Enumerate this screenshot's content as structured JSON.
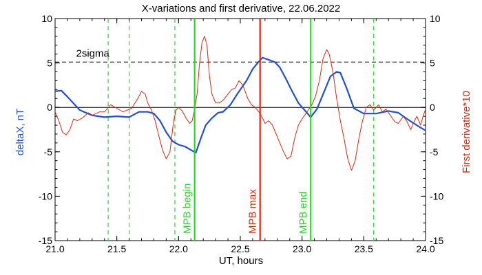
{
  "chart_data": {
    "type": "line",
    "title": "X-variations and first derivative, 22.06.2022",
    "xlabel": "UT, hours",
    "ylabel_left": "deltaX, nT",
    "ylabel_right": "First derivative*10",
    "xlim": [
      21.0,
      24.0
    ],
    "ylim_left": [
      -15,
      10
    ],
    "ylim_right": [
      -15,
      10
    ],
    "x_ticks": [
      "21.0",
      "21.5",
      "22.0",
      "22.5",
      "23.0",
      "23.5",
      "24.0"
    ],
    "x_tick_values": [
      21.0,
      21.5,
      22.0,
      22.5,
      23.0,
      23.5,
      24.0
    ],
    "y_ticks_left": [
      "-15",
      "-10",
      "-5",
      "0",
      "5",
      "10"
    ],
    "y_tick_values_left": [
      -15,
      -10,
      -5,
      0,
      5,
      10
    ],
    "y_ticks_right": [
      "-15",
      "-10",
      "-5",
      "0",
      "5",
      "10"
    ],
    "y_tick_values_right": [
      -15,
      -10,
      -5,
      0,
      5,
      10
    ],
    "colors": {
      "deltaX": "#1f4fd6",
      "derivative": "#d42a10",
      "marker_green": "#22dd22",
      "marker_red": "#e02a10",
      "axis": "#000000"
    },
    "reference_lines": [
      {
        "y": 0,
        "style": "solid"
      },
      {
        "y": 5.1,
        "style": "dashed",
        "label": "2sigma"
      }
    ],
    "dashed_green_lines_x": [
      21.43,
      21.6,
      21.97,
      23.58
    ],
    "markers": [
      {
        "x": 22.13,
        "label": "MPB begin",
        "color": "green"
      },
      {
        "x": 22.66,
        "label": "MPB max",
        "color": "red"
      },
      {
        "x": 23.07,
        "label": "MPB end",
        "color": "green"
      }
    ],
    "series": [
      {
        "name": "deltaX, nT",
        "color": "blue",
        "points": [
          [
            21.0,
            1.8
          ],
          [
            21.05,
            1.9
          ],
          [
            21.1,
            1.2
          ],
          [
            21.2,
            -0.3
          ],
          [
            21.3,
            -0.9
          ],
          [
            21.4,
            -1.1
          ],
          [
            21.5,
            -1.0
          ],
          [
            21.6,
            -1.1
          ],
          [
            21.68,
            -0.5
          ],
          [
            21.75,
            -0.5
          ],
          [
            21.8,
            -0.7
          ],
          [
            21.85,
            -1.5
          ],
          [
            21.9,
            -2.8
          ],
          [
            21.95,
            -3.8
          ],
          [
            22.0,
            -4.2
          ],
          [
            22.05,
            -4.4
          ],
          [
            22.1,
            -4.8
          ],
          [
            22.14,
            -5.1
          ],
          [
            22.18,
            -3.5
          ],
          [
            22.22,
            -2.0
          ],
          [
            22.27,
            -1.2
          ],
          [
            22.32,
            -0.6
          ],
          [
            22.36,
            -0.5
          ],
          [
            22.42,
            0.3
          ],
          [
            22.48,
            1.6
          ],
          [
            22.55,
            3.0
          ],
          [
            22.6,
            4.3
          ],
          [
            22.64,
            5.0
          ],
          [
            22.68,
            5.6
          ],
          [
            22.72,
            5.4
          ],
          [
            22.78,
            5.1
          ],
          [
            22.82,
            4.5
          ],
          [
            22.87,
            3.2
          ],
          [
            22.92,
            1.8
          ],
          [
            22.97,
            0.5
          ],
          [
            23.02,
            -0.3
          ],
          [
            23.07,
            -1.1
          ],
          [
            23.12,
            -0.2
          ],
          [
            23.18,
            1.8
          ],
          [
            23.23,
            3.5
          ],
          [
            23.28,
            4.0
          ],
          [
            23.31,
            3.9
          ],
          [
            23.36,
            2.2
          ],
          [
            23.42,
            -0.1
          ],
          [
            23.5,
            -0.7
          ],
          [
            23.6,
            -0.7
          ],
          [
            23.7,
            -0.4
          ],
          [
            23.78,
            -0.6
          ],
          [
            23.85,
            -1.3
          ],
          [
            23.95,
            -2.2
          ],
          [
            24.0,
            -2.6
          ]
        ]
      },
      {
        "name": "First derivative*10",
        "color": "red",
        "points": [
          [
            21.0,
            -0.5
          ],
          [
            21.03,
            -1.5
          ],
          [
            21.06,
            -2.8
          ],
          [
            21.09,
            -3.1
          ],
          [
            21.12,
            -2.5
          ],
          [
            21.15,
            -1.3
          ],
          [
            21.18,
            -1.5
          ],
          [
            21.22,
            -1.2
          ],
          [
            21.27,
            -0.6
          ],
          [
            21.3,
            -0.9
          ],
          [
            21.36,
            -0.5
          ],
          [
            21.4,
            -0.5
          ],
          [
            21.45,
            0.3
          ],
          [
            21.5,
            -0.1
          ],
          [
            21.55,
            -0.5
          ],
          [
            21.62,
            -0.1
          ],
          [
            21.67,
            1.0
          ],
          [
            21.7,
            1.8
          ],
          [
            21.73,
            1.5
          ],
          [
            21.75,
            0.5
          ],
          [
            21.78,
            -0.3
          ],
          [
            21.81,
            -1.5
          ],
          [
            21.84,
            -3.2
          ],
          [
            21.87,
            -4.8
          ],
          [
            21.9,
            -5.8
          ],
          [
            21.93,
            -5.0
          ],
          [
            21.96,
            -1.5
          ],
          [
            21.98,
            -0.3
          ],
          [
            22.0,
            0.0
          ],
          [
            22.03,
            -0.4
          ],
          [
            22.06,
            -1.2
          ],
          [
            22.09,
            -1.8
          ],
          [
            22.11,
            -1.5
          ],
          [
            22.13,
            -0.2
          ],
          [
            22.15,
            1.5
          ],
          [
            22.17,
            5.0
          ],
          [
            22.19,
            7.3
          ],
          [
            22.21,
            8.0
          ],
          [
            22.23,
            7.0
          ],
          [
            22.25,
            3.5
          ],
          [
            22.27,
            1.5
          ],
          [
            22.3,
            0.5
          ],
          [
            22.33,
            0.5
          ],
          [
            22.36,
            0.8
          ],
          [
            22.4,
            1.5
          ],
          [
            22.43,
            2.0
          ],
          [
            22.46,
            2.2
          ],
          [
            22.49,
            3.0
          ],
          [
            22.52,
            2.5
          ],
          [
            22.56,
            1.0
          ],
          [
            22.59,
            0.3
          ],
          [
            22.62,
            0.0
          ],
          [
            22.65,
            -0.5
          ],
          [
            22.68,
            -1.2
          ],
          [
            22.7,
            -1.8
          ],
          [
            22.73,
            -1.5
          ],
          [
            22.76,
            -2.0
          ],
          [
            22.79,
            -3.0
          ],
          [
            22.82,
            -4.0
          ],
          [
            22.85,
            -5.0
          ],
          [
            22.88,
            -5.8
          ],
          [
            22.91,
            -5.5
          ],
          [
            22.94,
            -3.5
          ],
          [
            22.97,
            -2.0
          ],
          [
            23.0,
            -1.3
          ],
          [
            23.02,
            -0.9
          ],
          [
            23.05,
            -0.3
          ],
          [
            23.08,
            0.3
          ],
          [
            23.11,
            1.3
          ],
          [
            23.14,
            3.0
          ],
          [
            23.17,
            5.5
          ],
          [
            23.2,
            6.5
          ],
          [
            23.22,
            6.0
          ],
          [
            23.25,
            4.0
          ],
          [
            23.28,
            1.0
          ],
          [
            23.31,
            -1.5
          ],
          [
            23.34,
            -3.5
          ],
          [
            23.37,
            -5.8
          ],
          [
            23.4,
            -7.1
          ],
          [
            23.43,
            -6.0
          ],
          [
            23.46,
            -3.5
          ],
          [
            23.49,
            -1.5
          ],
          [
            23.52,
            0.0
          ],
          [
            23.55,
            0.3
          ],
          [
            23.58,
            -0.3
          ],
          [
            23.62,
            0.3
          ],
          [
            23.65,
            -0.5
          ],
          [
            23.68,
            -0.2
          ],
          [
            23.72,
            -1.0
          ],
          [
            23.75,
            -1.6
          ],
          [
            23.78,
            -1.8
          ],
          [
            23.82,
            -1.0
          ],
          [
            23.85,
            -1.6
          ],
          [
            23.88,
            -2.5
          ],
          [
            23.9,
            -1.8
          ],
          [
            23.93,
            -1.0
          ],
          [
            23.96,
            -2.0
          ],
          [
            23.98,
            -1.0
          ],
          [
            24.0,
            -0.2
          ]
        ]
      }
    ]
  }
}
